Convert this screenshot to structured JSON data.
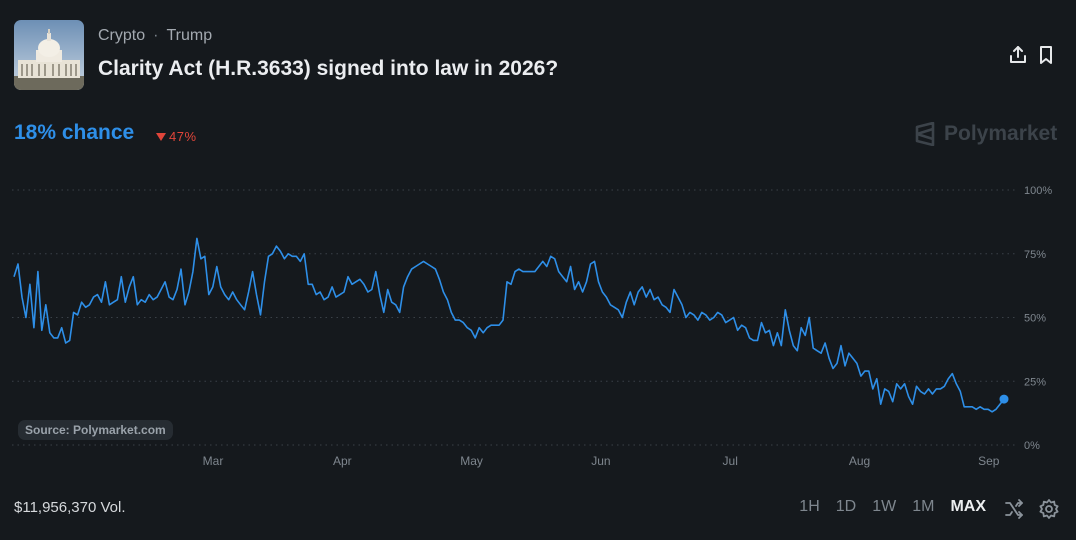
{
  "header": {
    "category": "Crypto",
    "tag": "Trump",
    "title": "Clarity Act (H.R.3633) signed into law in 2026?"
  },
  "summary": {
    "chance": "18% chance",
    "change": "47%",
    "change_direction": "down",
    "brand": "Polymarket"
  },
  "source_label": "Source: Polymarket.com",
  "volume": "$11,956,370 Vol.",
  "ranges": [
    "1H",
    "1D",
    "1W",
    "1M",
    "MAX"
  ],
  "active_range": "MAX",
  "colors": {
    "line": "#2e8fe8",
    "down": "#e0453a",
    "background": "#15191d"
  },
  "icons": [
    "share-icon",
    "bookmark-icon",
    "shuffle-icon",
    "settings-icon",
    "polymarket-logo-icon"
  ],
  "chart_data": {
    "type": "line",
    "ylim": [
      0,
      100
    ],
    "y_ticks": [
      "100%",
      "75%",
      "50%",
      "25%",
      "0%"
    ],
    "x_ticks": [
      "Mar",
      "Apr",
      "May",
      "Jun",
      "Jul",
      "Aug",
      "Sep"
    ],
    "grid": true,
    "series": [
      {
        "values": [
          66,
          71,
          58,
          50,
          63,
          46,
          68,
          45,
          55,
          44,
          42,
          42,
          46,
          40,
          41,
          52,
          51,
          56,
          54,
          55,
          58,
          59,
          56,
          64,
          55,
          56,
          57,
          66,
          56,
          62,
          66,
          55,
          57,
          56,
          59,
          57,
          58,
          61,
          64,
          58,
          57,
          61,
          69,
          55,
          60,
          68,
          81,
          73,
          74,
          59,
          62,
          70,
          62,
          59,
          57,
          60,
          57,
          55,
          53,
          60,
          68,
          59,
          51,
          64,
          74,
          75,
          78,
          76,
          73,
          75,
          74,
          74,
          72,
          75,
          63,
          63,
          59,
          60,
          57,
          58,
          62,
          58,
          59,
          60,
          66,
          63,
          64,
          65,
          63,
          60,
          61,
          68,
          59,
          52,
          61,
          56,
          55,
          52,
          62,
          66,
          69,
          70,
          71,
          72,
          71,
          70,
          69,
          65,
          60,
          57,
          52,
          49,
          49,
          48,
          46,
          45,
          42,
          46,
          44,
          46,
          47,
          47,
          47,
          49,
          64,
          63,
          68,
          69,
          68,
          68,
          68,
          68,
          70,
          72,
          70,
          74,
          73,
          68,
          66,
          64,
          70,
          61,
          64,
          60,
          64,
          71,
          72,
          64,
          60,
          58,
          55,
          54,
          53,
          50,
          56,
          60,
          55,
          60,
          62,
          58,
          61,
          57,
          58,
          55,
          54,
          52,
          61,
          58,
          55,
          50,
          52,
          51,
          49,
          52,
          51,
          49,
          50,
          52,
          51,
          48,
          49,
          50,
          45,
          47,
          46,
          42,
          41,
          41,
          48,
          44,
          45,
          39,
          44,
          39,
          53,
          45,
          39,
          37,
          46,
          43,
          50,
          38,
          37,
          36,
          40,
          34,
          30,
          32,
          39,
          31,
          36,
          34,
          32,
          27,
          29,
          29,
          22,
          26,
          16,
          22,
          21,
          17,
          24,
          22,
          24,
          19,
          16,
          23,
          21,
          20,
          22,
          20,
          22,
          22,
          23,
          26,
          28,
          24,
          21,
          15,
          15,
          15,
          14,
          15,
          14,
          14,
          13,
          14,
          16,
          18
        ]
      }
    ],
    "current_value": 18
  }
}
